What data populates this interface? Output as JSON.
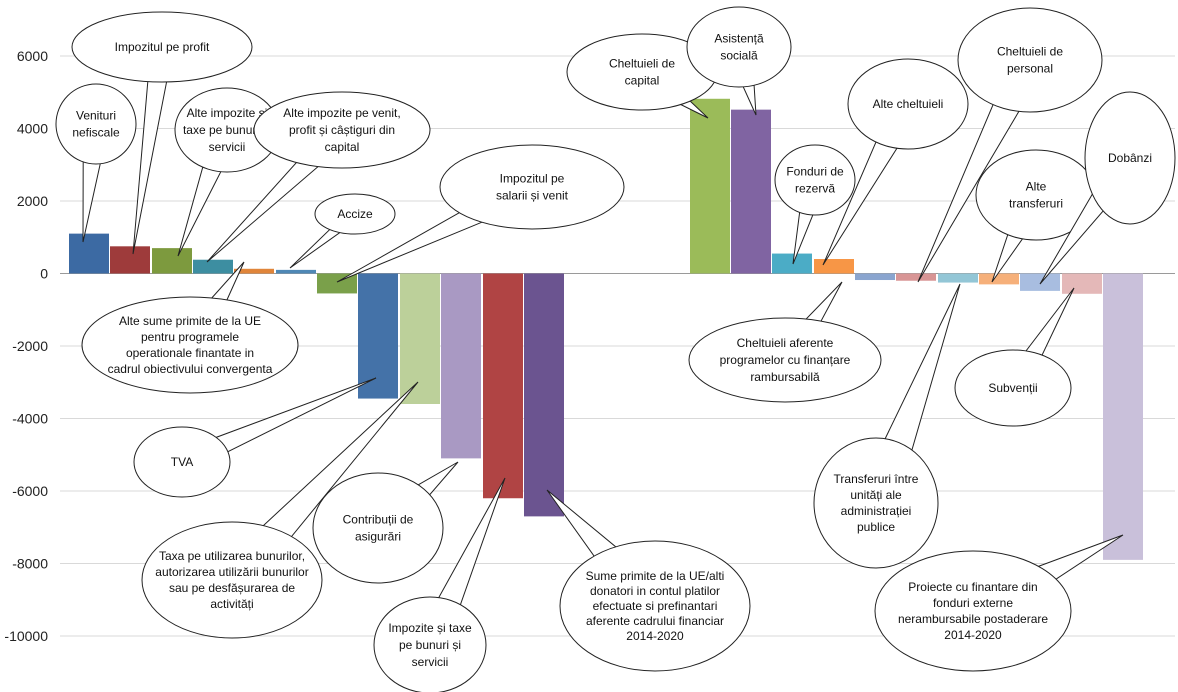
{
  "chart_data": {
    "type": "bar",
    "ylim": [
      -10000,
      6000
    ],
    "yticks": [
      6000,
      4000,
      2000,
      0,
      -2000,
      -4000,
      -6000,
      -8000,
      -10000
    ],
    "grid": true,
    "legend": "none",
    "bars": [
      {
        "name": "Venituri nefiscale",
        "value": 1100,
        "color": "#3c6aa3"
      },
      {
        "name": "Impozitul pe profit",
        "value": 750,
        "color": "#9e3b3b"
      },
      {
        "name": "Alte impozite și taxe pe bunuri și servicii",
        "value": 700,
        "color": "#7d9a3e"
      },
      {
        "name": "Alte impozite pe venit, profit și câștiguri din capital",
        "value": 380,
        "color": "#3d8ea1"
      },
      {
        "name": "Alte sume primite de la UE pentru programele operationale finantate in cadrul obiectivului convergenta",
        "value": 130,
        "color": "#e0853a"
      },
      {
        "name": "Accize",
        "value": 100,
        "color": "#4f88b5"
      },
      {
        "name": "Impozitul pe salarii și venit",
        "value": -550,
        "color": "#7aa04a"
      },
      {
        "name": "TVA",
        "value": -3450,
        "color": "#4472a8"
      },
      {
        "name": "Taxa pe utilizarea bunurilor, autorizarea utilizării bunurilor sau pe desfășurarea de activități",
        "value": -3600,
        "color": "#bcd09a"
      },
      {
        "name": "Contribuții de asigurări",
        "value": -5100,
        "color": "#a999c3"
      },
      {
        "name": "Impozite și taxe pe bunuri și servicii",
        "value": -6200,
        "color": "#b04444"
      },
      {
        "name": "Sume primite de la UE/alti donatori in contul platilor efectuate si prefinantari aferente cadrului financiar 2014-2020",
        "value": -6700,
        "color": "#6b5490"
      },
      {
        "name": "Cheltuieli de capital",
        "value": 4820,
        "color": "#9bbb59"
      },
      {
        "name": "Asistență socială",
        "value": 4520,
        "color": "#8064a2"
      },
      {
        "name": "Fonduri de rezervă",
        "value": 550,
        "color": "#4bacc6"
      },
      {
        "name": "Alte cheltuieli",
        "value": 400,
        "color": "#f79646"
      },
      {
        "name": "Cheltuieli aferente programelor cu finanțare rambursabilă",
        "value": -180,
        "color": "#8aa5cf"
      },
      {
        "name": "Cheltuieli de personal",
        "value": -200,
        "color": "#d89595"
      },
      {
        "name": "Transferuri între unități ale administrației publice",
        "value": -250,
        "color": "#93c6d6"
      },
      {
        "name": "Alte transferuri",
        "value": -300,
        "color": "#f6b07a"
      },
      {
        "name": "Dobânzi",
        "value": -480,
        "color": "#a8bde0"
      },
      {
        "name": "Subvenții",
        "value": -560,
        "color": "#e4b8b8"
      },
      {
        "name": "Proiecte cu finantare din fonduri externe nerambursabile postaderare 2014-2020",
        "value": -7900,
        "color": "#c9c0da"
      }
    ],
    "callouts": [
      {
        "bar": 0,
        "lines": [
          "Venituri",
          "nefiscale"
        ]
      },
      {
        "bar": 1,
        "lines": [
          "Impozitul pe profit"
        ]
      },
      {
        "bar": 2,
        "lines": [
          "Alte impozite și",
          "taxe pe bunuri și",
          "servicii"
        ]
      },
      {
        "bar": 3,
        "lines": [
          "Alte impozite pe venit,",
          "profit și câștiguri din",
          "capital"
        ]
      },
      {
        "bar": 4,
        "lines": [
          "Alte sume primite de la UE",
          "pentru programele",
          "operationale finantate in",
          "cadrul obiectivului convergenta"
        ]
      },
      {
        "bar": 5,
        "lines": [
          "Accize"
        ]
      },
      {
        "bar": 6,
        "lines": [
          "Impozitul pe",
          "salarii și venit"
        ]
      },
      {
        "bar": 7,
        "lines": [
          "TVA"
        ]
      },
      {
        "bar": 8,
        "lines": [
          "Taxa pe utilizarea bunurilor,",
          "autorizarea utilizării bunurilor",
          "sau pe desfășurarea de",
          "activități"
        ]
      },
      {
        "bar": 9,
        "lines": [
          "Contribuții de",
          "asigurări"
        ]
      },
      {
        "bar": 10,
        "lines": [
          "Impozite și taxe",
          "pe bunuri și",
          "servicii"
        ]
      },
      {
        "bar": 11,
        "lines": [
          "Sume primite de la UE/alti",
          "donatori in contul platilor",
          "efectuate si prefinantari",
          "aferente cadrului financiar",
          "2014-2020"
        ]
      },
      {
        "bar": 12,
        "lines": [
          "Cheltuieli de",
          "capital"
        ]
      },
      {
        "bar": 13,
        "lines": [
          "Asistență",
          "socială"
        ]
      },
      {
        "bar": 14,
        "lines": [
          "Fonduri de",
          "rezervă"
        ]
      },
      {
        "bar": 15,
        "lines": [
          "Alte cheltuieli"
        ]
      },
      {
        "bar": 16,
        "lines": [
          "Cheltuieli aferente",
          "programelor cu finanțare",
          "rambursabilă"
        ]
      },
      {
        "bar": 17,
        "lines": [
          "Cheltuieli de",
          "personal"
        ]
      },
      {
        "bar": 18,
        "lines": [
          "Transferuri între",
          "unități ale",
          "administrației",
          "publice"
        ]
      },
      {
        "bar": 19,
        "lines": [
          "Alte",
          "transferuri"
        ]
      },
      {
        "bar": 20,
        "lines": [
          "Dobânzi"
        ]
      },
      {
        "bar": 21,
        "lines": [
          "Subvenții"
        ]
      },
      {
        "bar": 22,
        "lines": [
          "Proiecte cu finantare din",
          "fonduri externe",
          "nerambursabile postaderare",
          "2014-2020"
        ]
      }
    ]
  }
}
